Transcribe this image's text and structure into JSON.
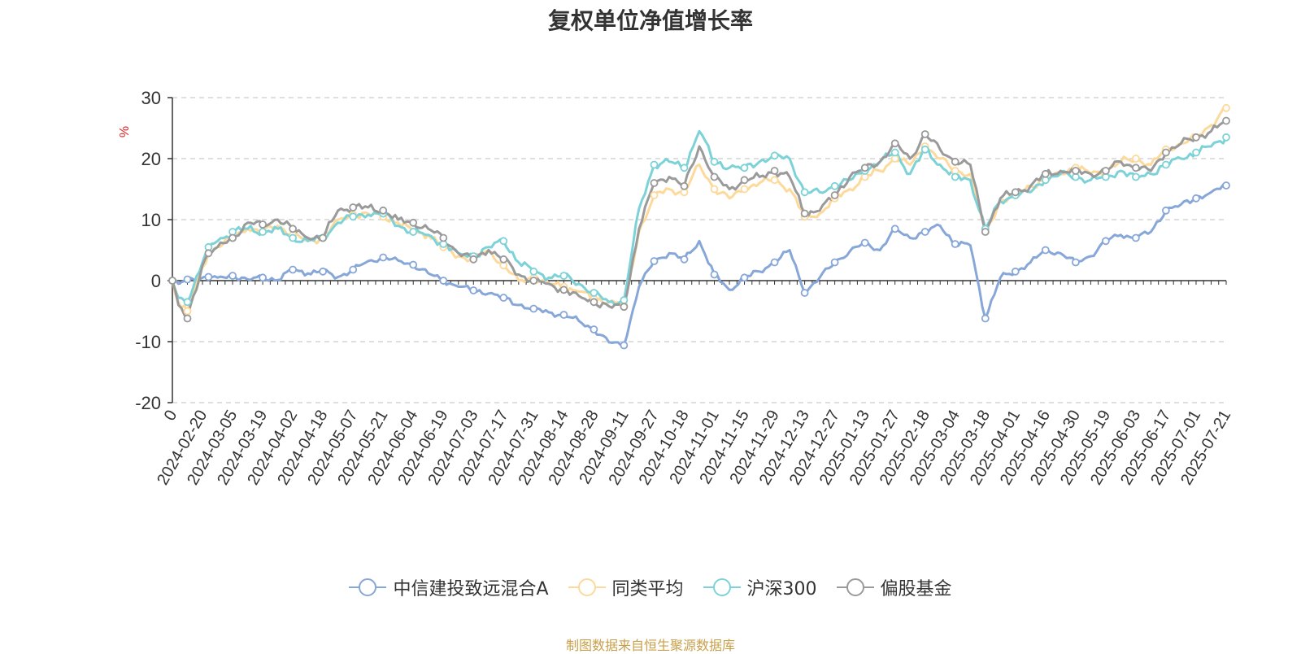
{
  "chart_data": {
    "type": "line",
    "title": "复权单位净值增长率",
    "ylabel": "%",
    "ylim": [
      -20,
      30
    ],
    "yticks": [
      "30",
      "20",
      "10",
      "0",
      "-10",
      "-20"
    ],
    "ytick_values": [
      30,
      20,
      10,
      0,
      -10,
      -20
    ],
    "xticks": [
      "0",
      "2024-02-20",
      "2024-03-05",
      "2024-03-19",
      "2024-04-02",
      "2024-04-18",
      "2024-05-07",
      "2024-05-21",
      "2024-06-04",
      "2024-06-19",
      "2024-07-03",
      "2024-07-17",
      "2024-07-31",
      "2024-08-14",
      "2024-08-28",
      "2024-09-11",
      "2024-09-27",
      "2024-10-18",
      "2024-11-01",
      "2024-11-15",
      "2024-11-29",
      "2024-12-13",
      "2024-12-27",
      "2025-01-13",
      "2025-01-27",
      "2025-02-18",
      "2025-03-04",
      "2025-03-18",
      "2025-04-01",
      "2025-04-16",
      "2025-04-30",
      "2025-05-19",
      "2025-06-03",
      "2025-06-17",
      "2025-07-01",
      "2025-07-21"
    ],
    "grid": "horizontal dashed",
    "legend_position": "bottom",
    "x_key_points": [
      0,
      2,
      5,
      10,
      12,
      15,
      20,
      25,
      30,
      35,
      40,
      45,
      50,
      55,
      60,
      65,
      70,
      75,
      80,
      85,
      90,
      95,
      100,
      105,
      110,
      115,
      120,
      125,
      130,
      135,
      140,
      145,
      150,
      155,
      160,
      165,
      170,
      175,
      180,
      185,
      190,
      195,
      200,
      205,
      210,
      215,
      220,
      225,
      230,
      235,
      240,
      245,
      250,
      255,
      260,
      265,
      270,
      275,
      280,
      285,
      290,
      295,
      300,
      305,
      310,
      315,
      320,
      325,
      330,
      335,
      340,
      345,
      350
    ],
    "series": [
      {
        "name": "中信建投致远混合A",
        "color": "#87a7d8",
        "values": [
          0,
          -0.5,
          0.2,
          0.5,
          0.6,
          0.5,
          0.8,
          0.2,
          0.5,
          0.1,
          1.8,
          1.2,
          1.5,
          0.6,
          1.8,
          3.2,
          3.8,
          3.3,
          2.6,
          1.2,
          0,
          -1.0,
          -1.6,
          -2.1,
          -2.8,
          -4.0,
          -4.6,
          -5.2,
          -5.6,
          -6.6,
          -8.0,
          -10.1,
          -10.6,
          -1.0,
          3.2,
          4.5,
          3.5,
          6.5,
          1.0,
          -1.5,
          0.5,
          1.5,
          3.0,
          5.0,
          -2.0,
          0.5,
          3.0,
          4.8,
          6.2,
          5.0,
          8.5,
          7.0,
          8.0,
          9.0,
          6.0,
          5.8,
          -6.2,
          0.5,
          1.5,
          3.0,
          5.0,
          4.5,
          3.0,
          4.0,
          6.5,
          7.5,
          7.0,
          8.0,
          11.5,
          12.5,
          13.5,
          14.5,
          15.6
        ]
      },
      {
        "name": "同类平均",
        "color": "#fdd99c",
        "values": [
          0,
          -3.5,
          -5.0,
          2.2,
          4.5,
          5.5,
          7.0,
          8.5,
          8.0,
          9.0,
          7.5,
          6.5,
          7.0,
          10.0,
          10.8,
          11.0,
          10.5,
          9.5,
          8.0,
          7.5,
          5.5,
          4.0,
          3.5,
          5.0,
          2.5,
          0,
          0.5,
          -0.5,
          -1.0,
          -1.8,
          -3.0,
          -3.5,
          -4.0,
          8.0,
          14.0,
          15.0,
          14.5,
          19.0,
          15.0,
          13.5,
          15.0,
          16.0,
          16.5,
          15.0,
          10.5,
          11.0,
          13.5,
          15.0,
          17.0,
          18.0,
          20.0,
          19.0,
          22.0,
          20.0,
          18.0,
          17.5,
          8.0,
          13.0,
          14.0,
          15.5,
          16.5,
          17.5,
          18.5,
          17.5,
          18.0,
          19.5,
          20.0,
          19.0,
          21.5,
          22.5,
          23.5,
          25.5,
          28.3
        ]
      },
      {
        "name": "沪深300",
        "color": "#7dd2d8",
        "values": [
          0,
          -2.8,
          -3.5,
          3.0,
          5.5,
          6.5,
          8.0,
          8.5,
          8.0,
          8.5,
          7.0,
          6.5,
          7.0,
          9.5,
          10.5,
          10.8,
          11.0,
          9.0,
          8.0,
          7.5,
          6.0,
          4.5,
          4.0,
          5.5,
          6.5,
          3.0,
          1.5,
          0.5,
          0.8,
          -0.5,
          -2.0,
          -3.5,
          -3.2,
          11.8,
          19.0,
          19.5,
          18.5,
          24.5,
          19.5,
          18.5,
          18.5,
          19.5,
          20.5,
          20.0,
          14.5,
          14.5,
          15.5,
          16.5,
          18.0,
          19.5,
          21.0,
          17.5,
          21.5,
          19.0,
          17.0,
          16.5,
          8.5,
          13.0,
          14.0,
          14.5,
          16.5,
          17.5,
          17.0,
          16.5,
          17.0,
          18.0,
          17.0,
          17.5,
          19.0,
          20.0,
          21.0,
          22.0,
          23.5
        ]
      },
      {
        "name": "偏股基金",
        "color": "#9a9a9a",
        "values": [
          0,
          -4.0,
          -6.2,
          2.5,
          4.5,
          5.5,
          7.0,
          9.5,
          9.2,
          10.0,
          8.5,
          7.0,
          7.0,
          11.5,
          12.0,
          12.0,
          11.5,
          10.0,
          9.5,
          8.5,
          7.0,
          4.5,
          3.5,
          5.0,
          3.5,
          1.0,
          0,
          -0.5,
          -1.5,
          -2.5,
          -3.5,
          -4.2,
          -4.3,
          8.5,
          16.0,
          17.0,
          15.5,
          22.0,
          17.0,
          15.0,
          16.5,
          17.0,
          18.0,
          17.0,
          11.0,
          11.5,
          14.0,
          17.0,
          18.5,
          19.5,
          22.5,
          20.0,
          24.0,
          21.5,
          19.5,
          19.0,
          8.0,
          13.5,
          14.5,
          15.5,
          17.5,
          18.0,
          18.0,
          17.5,
          18.0,
          19.5,
          18.5,
          18.0,
          21.0,
          22.5,
          23.5,
          24.5,
          26.2
        ]
      }
    ],
    "source": "制图数据来自恒生聚源数据库"
  }
}
